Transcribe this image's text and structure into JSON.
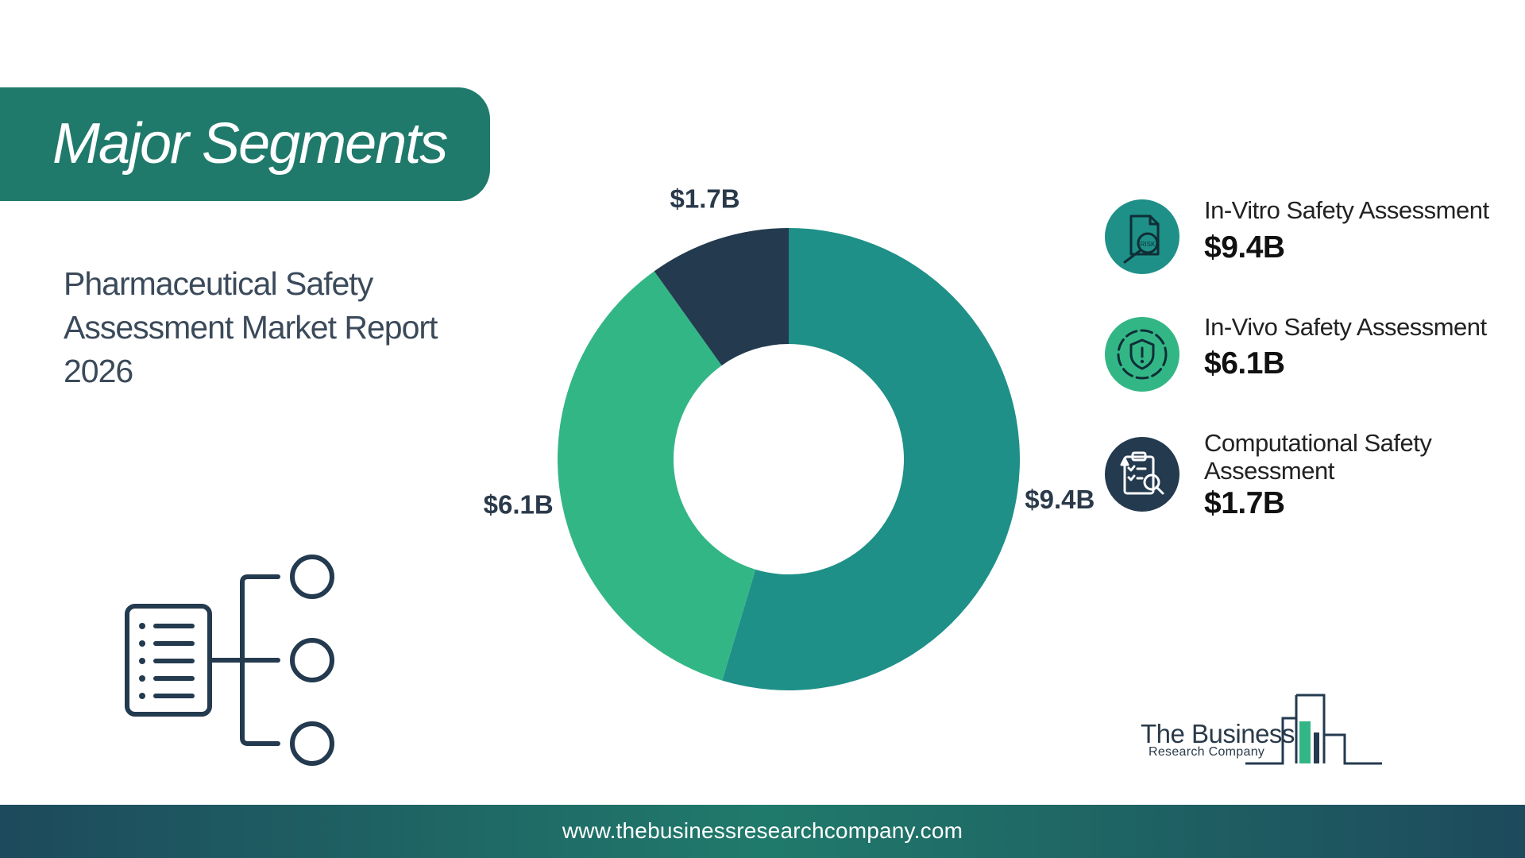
{
  "header": {
    "title": "Major Segments"
  },
  "report": {
    "title_lines": [
      "Pharmaceutical Safety",
      "Assessment Market Report",
      "2026"
    ]
  },
  "chart_data": {
    "type": "pie",
    "donut": true,
    "categories": [
      "In-Vitro Safety Assessment",
      "In-Vivo Safety Assessment",
      "Computational Safety Assessment"
    ],
    "values": [
      9.4,
      6.1,
      1.7
    ],
    "data_labels": [
      "$9.4B",
      "$6.1B",
      "$1.7B"
    ],
    "colors": [
      "#1e9088",
      "#33b686",
      "#233a4f"
    ],
    "legend_placement": "right"
  },
  "legend": [
    {
      "label_lines": [
        "In-Vitro Safety Assessment"
      ],
      "value": "$9.4B",
      "icon": "risk-magnifier-icon",
      "icon_bg": "#1e9088"
    },
    {
      "label_lines": [
        "In-Vivo Safety Assessment"
      ],
      "value": "$6.1B",
      "icon": "shield-alert-icon",
      "icon_bg": "#33b686"
    },
    {
      "label_lines": [
        "Computational Safety",
        "Assessment"
      ],
      "value": "$1.7B",
      "icon": "clipboard-search-icon",
      "icon_bg": "#233a4f"
    }
  ],
  "brand": {
    "line1": "The Business",
    "line2": "Research Company"
  },
  "footer": {
    "url": "www.thebusinessresearchcompany.com"
  }
}
